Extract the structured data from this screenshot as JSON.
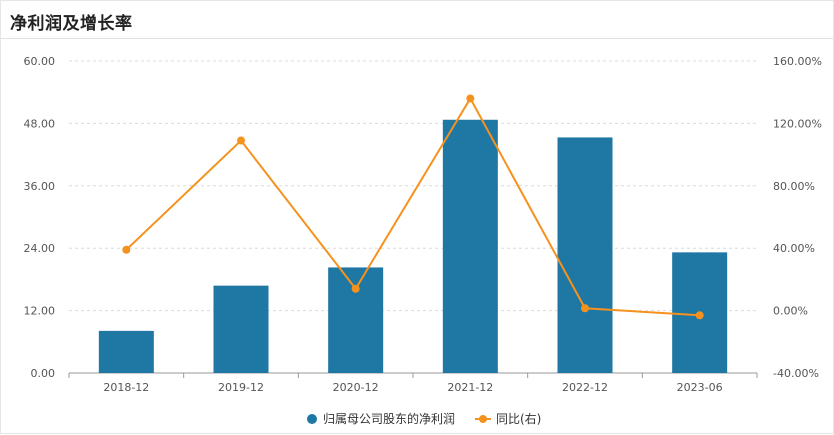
{
  "header": {
    "title": "净利润及增长率"
  },
  "chart_data": {
    "type": "bar",
    "categories": [
      "2018-12",
      "2019-12",
      "2020-12",
      "2021-12",
      "2022-12",
      "2023-06"
    ],
    "series": [
      {
        "name": "归属母公司股东的净利润",
        "type": "bar",
        "axis": "left",
        "color": "#1f77a3",
        "values": [
          8.1,
          16.8,
          20.3,
          48.7,
          45.3,
          23.2
        ]
      },
      {
        "name": "同比(右)",
        "type": "line",
        "axis": "right",
        "color": "#f5921e",
        "values": [
          39.0,
          109.0,
          14.0,
          136.0,
          1.5,
          -3.0
        ]
      }
    ],
    "y_left": {
      "min": 0,
      "max": 60,
      "ticks": [
        "0.00",
        "12.00",
        "24.00",
        "36.00",
        "48.00",
        "60.00"
      ]
    },
    "y_right": {
      "min": -40,
      "max": 160,
      "ticks": [
        "-40.00%",
        "0.00%",
        "40.00%",
        "80.00%",
        "120.00%",
        "160.00%"
      ]
    },
    "grid": true,
    "legend_position": "bottom"
  }
}
